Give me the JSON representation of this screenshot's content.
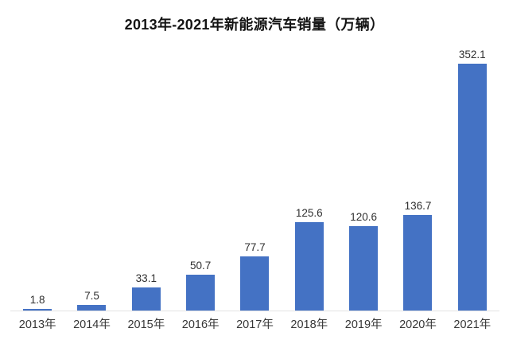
{
  "title": "2013年-2021年新能源汽车销量（万辆）",
  "chart_data": {
    "type": "bar",
    "title": "2013年-2021年新能源汽车销量（万辆）",
    "categories": [
      "2013年",
      "2014年",
      "2015年",
      "2016年",
      "2017年",
      "2018年",
      "2019年",
      "2020年",
      "2021年"
    ],
    "values": [
      1.8,
      7.5,
      33.1,
      50.7,
      77.7,
      125.6,
      120.6,
      136.7,
      352.1
    ],
    "xlabel": "",
    "ylabel": "",
    "ylim": [
      0,
      370
    ],
    "grid": false,
    "legend": false,
    "data_labels": true,
    "bar_color": "#4472C4",
    "value_label_color": "#2f2f2f",
    "axis_label_color": "#373737",
    "axis_line_color": "#e3e3e3",
    "background_color": "#ffffff"
  }
}
